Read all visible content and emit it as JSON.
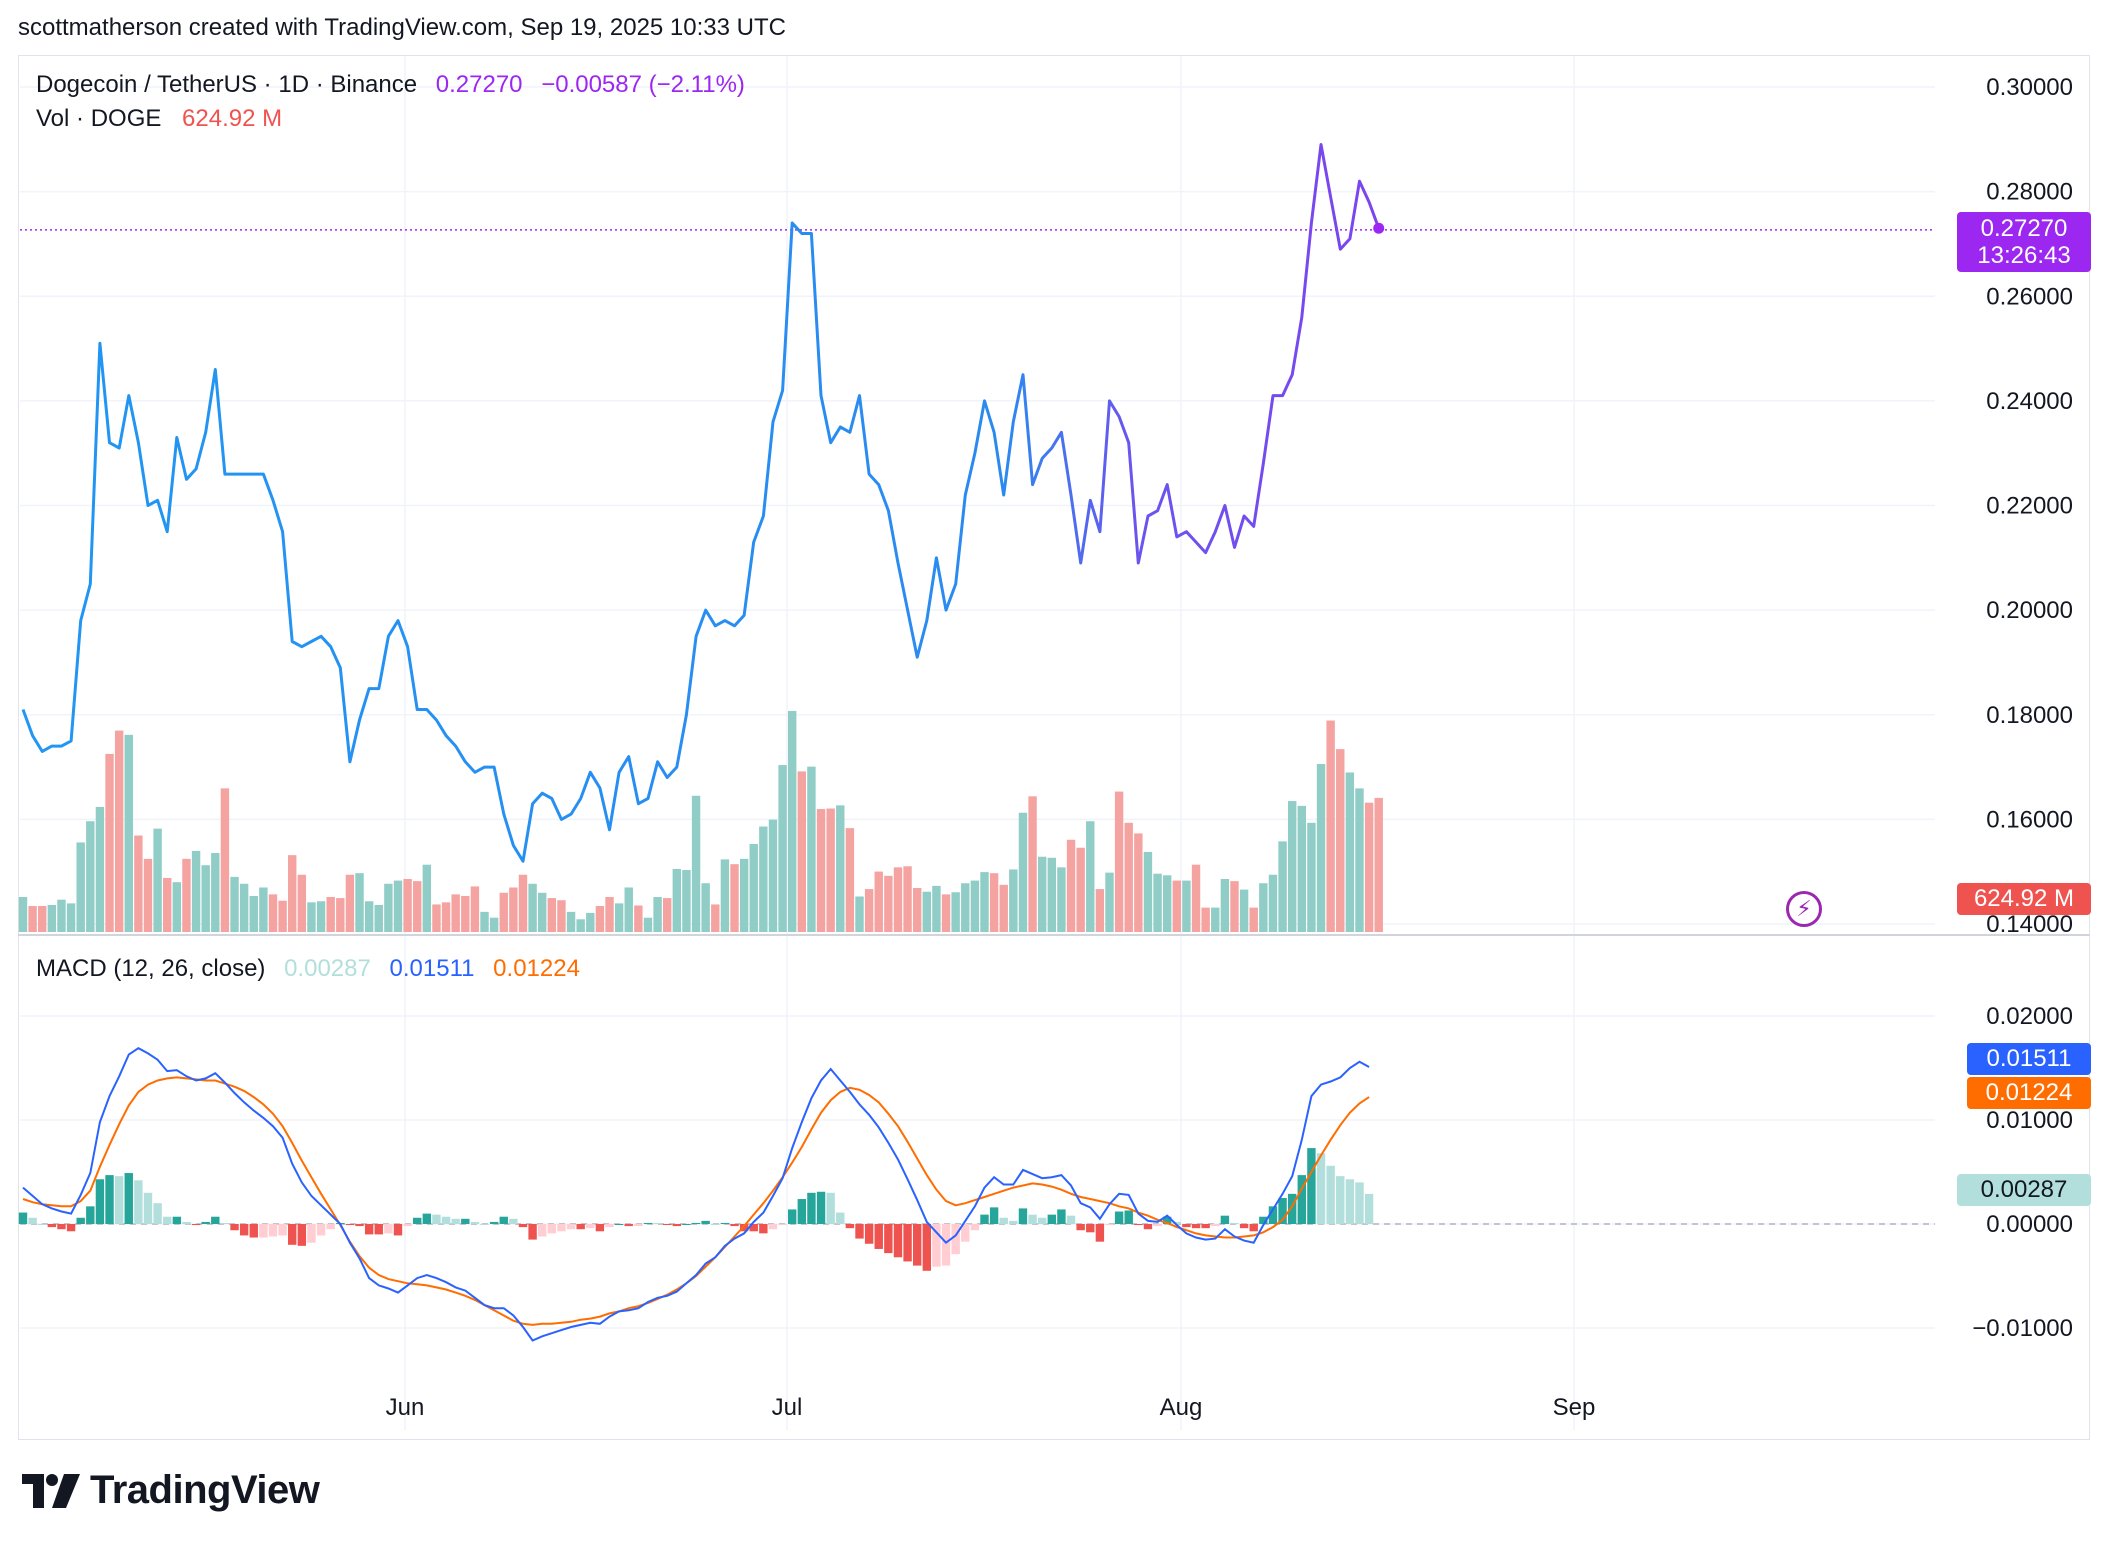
{
  "attribution": "scottmatherson created with TradingView.com, Sep 19, 2025 10:33 UTC",
  "legend": {
    "symbol": "Dogecoin / TetherUS · 1D · Binance",
    "price": "0.27270",
    "change": "−0.00587 (−2.11%)",
    "vol_label": "Vol · DOGE",
    "vol_value": "624.92 M",
    "macd_label": "MACD (12, 26, close)",
    "macd_hist": "0.00287",
    "macd_line": "0.01511",
    "macd_signal": "0.01224"
  },
  "tags": {
    "price": "0.27270",
    "countdown": "13:26:43",
    "volume": "624.92 M",
    "macd_line": "0.01511",
    "macd_signal": "0.01224",
    "macd_hist": "0.00287"
  },
  "colors": {
    "price_line_start": "#2196f3",
    "price_line_end": "#9c27f0",
    "price_tag": "#9c27f0",
    "up": "#26a69a",
    "down": "#ef5350",
    "vol_up": "#8fcdc6",
    "vol_down": "#f4a3a1",
    "macd_line": "#2962ff",
    "signal_line": "#ff6d00",
    "hist_light_up": "#b2dfdb",
    "hist_light_down": "#ffcdd2"
  },
  "logo_text": "TradingView",
  "chart_data": [
    {
      "type": "line",
      "title": "Dogecoin / TetherUS · 1D · Binance",
      "x_ticks": [
        "Jun",
        "Jul",
        "Aug",
        "Sep"
      ],
      "y_ticks": [
        "0.30000",
        "0.28000",
        "0.26000",
        "0.24000",
        "0.22000",
        "0.20000",
        "0.18000",
        "0.16000",
        "0.14000"
      ],
      "ylim": [
        0.14,
        0.3
      ],
      "last_price": 0.2727,
      "series": [
        {
          "name": "Dogecoin / TetherUS",
          "values": [
            0.181,
            0.176,
            0.173,
            0.174,
            0.174,
            0.175,
            0.198,
            0.205,
            0.251,
            0.232,
            0.231,
            0.241,
            0.232,
            0.22,
            0.221,
            0.215,
            0.233,
            0.225,
            0.227,
            0.234,
            0.246,
            0.226,
            0.226,
            0.226,
            0.226,
            0.226,
            0.221,
            0.215,
            0.194,
            0.193,
            0.194,
            0.195,
            0.193,
            0.189,
            0.171,
            0.179,
            0.185,
            0.185,
            0.195,
            0.198,
            0.193,
            0.181,
            0.181,
            0.179,
            0.176,
            0.174,
            0.171,
            0.169,
            0.17,
            0.17,
            0.161,
            0.155,
            0.152,
            0.163,
            0.165,
            0.164,
            0.16,
            0.161,
            0.164,
            0.169,
            0.166,
            0.158,
            0.169,
            0.172,
            0.163,
            0.164,
            0.171,
            0.168,
            0.17,
            0.18,
            0.195,
            0.2,
            0.197,
            0.198,
            0.197,
            0.199,
            0.213,
            0.218,
            0.236,
            0.242,
            0.274,
            0.272,
            0.272,
            0.241,
            0.232,
            0.235,
            0.234,
            0.241,
            0.226,
            0.224,
            0.219,
            0.209,
            0.2,
            0.191,
            0.198,
            0.21,
            0.2,
            0.205,
            0.222,
            0.23,
            0.24,
            0.234,
            0.222,
            0.236,
            0.245,
            0.224,
            0.229,
            0.231,
            0.234,
            0.222,
            0.209,
            0.221,
            0.215,
            0.24,
            0.237,
            0.232,
            0.209,
            0.218,
            0.219,
            0.224,
            0.214,
            0.215,
            0.213,
            0.211,
            0.215,
            0.22,
            0.212,
            0.218,
            0.216,
            0.228,
            0.241,
            0.241,
            0.245,
            0.256,
            0.274,
            0.289,
            0.279,
            0.269,
            0.271,
            0.282,
            0.278,
            0.273
          ]
        }
      ]
    },
    {
      "type": "bar",
      "title": "Vol · DOGE",
      "last_value": "624.92 M",
      "series": [
        {
          "name": "Vol · DOGE",
          "values": [
            0.66,
            0.49,
            0.49,
            0.51,
            0.61,
            0.54,
            1.69,
            2.09,
            2.36,
            3.36,
            3.8,
            3.72,
            1.82,
            1.38,
            1.95,
            1.02,
            0.94,
            1.38,
            1.53,
            1.26,
            1.49,
            2.71,
            1.04,
            0.91,
            0.68,
            0.84,
            0.71,
            0.59,
            1.45,
            1.08,
            0.56,
            0.58,
            0.66,
            0.64,
            1.08,
            1.11,
            0.58,
            0.51,
            0.91,
            0.97,
            1.0,
            0.96,
            1.27,
            0.52,
            0.56,
            0.71,
            0.68,
            0.86,
            0.38,
            0.27,
            0.74,
            0.84,
            1.08,
            0.91,
            0.74,
            0.64,
            0.6,
            0.38,
            0.24,
            0.36,
            0.49,
            0.66,
            0.54,
            0.84,
            0.5,
            0.27,
            0.66,
            0.64,
            1.19,
            1.17,
            2.57,
            0.92,
            0.52,
            1.37,
            1.28,
            1.38,
            1.66,
            1.99,
            2.12,
            3.15,
            4.17,
            3.03,
            3.12,
            2.32,
            2.33,
            2.39,
            1.96,
            0.67,
            0.81,
            1.14,
            1.06,
            1.22,
            1.24,
            0.83,
            0.76,
            0.87,
            0.71,
            0.75,
            0.92,
            0.97,
            1.13,
            1.11,
            0.89,
            1.18,
            2.25,
            2.56,
            1.42,
            1.4,
            1.22,
            1.74,
            1.59,
            2.09,
            0.81,
            1.12,
            2.65,
            2.06,
            1.86,
            1.51,
            1.1,
            1.07,
            0.97,
            0.97,
            1.27,
            0.46,
            0.46,
            1.0,
            0.96,
            0.8,
            0.46,
            0.92,
            1.08,
            1.71,
            2.47,
            2.38,
            2.06,
            3.17,
            3.99,
            3.45,
            3.01,
            2.71,
            2.44,
            2.53,
            2.05,
            1.77
          ]
        }
      ]
    },
    {
      "type": "line",
      "title": "MACD (12, 26, close)",
      "y_ticks": [
        "0.02000",
        "0.01000",
        "0.00000",
        "−0.01000"
      ],
      "ylim": [
        -0.015,
        0.025
      ],
      "series": [
        {
          "name": "MACD",
          "values": [
            0.0035,
            0.0027,
            0.0019,
            0.0015,
            0.0012,
            0.001,
            0.0028,
            0.0049,
            0.0098,
            0.0123,
            0.0142,
            0.0163,
            0.0169,
            0.0164,
            0.0158,
            0.0147,
            0.0148,
            0.0142,
            0.0138,
            0.014,
            0.0145,
            0.0136,
            0.0126,
            0.0117,
            0.0109,
            0.0102,
            0.0094,
            0.0083,
            0.0058,
            0.004,
            0.0027,
            0.0018,
            0.0009,
            0.0,
            -0.0018,
            -0.0033,
            -0.0052,
            -0.0059,
            -0.0062,
            -0.0066,
            -0.0059,
            -0.0052,
            -0.0049,
            -0.0052,
            -0.0056,
            -0.0061,
            -0.0064,
            -0.0071,
            -0.0078,
            -0.0081,
            -0.0081,
            -0.0088,
            -0.0099,
            -0.0112,
            -0.0108,
            -0.0105,
            -0.0102,
            -0.0099,
            -0.0097,
            -0.0095,
            -0.0096,
            -0.0089,
            -0.0084,
            -0.0083,
            -0.0081,
            -0.0075,
            -0.0071,
            -0.0069,
            -0.0065,
            -0.0057,
            -0.0049,
            -0.0038,
            -0.0032,
            -0.0021,
            -0.0014,
            -0.0009,
            0.0002,
            0.0011,
            0.0027,
            0.0044,
            0.0073,
            0.0098,
            0.0121,
            0.0138,
            0.0149,
            0.0138,
            0.0127,
            0.0115,
            0.0105,
            0.0093,
            0.0078,
            0.0062,
            0.0043,
            0.0023,
            0.0002,
            -0.0008,
            -0.0018,
            -0.0011,
            0.0003,
            0.0017,
            0.0035,
            0.0045,
            0.0038,
            0.0038,
            0.0052,
            0.0048,
            0.0044,
            0.0045,
            0.0047,
            0.0037,
            0.002,
            0.0016,
            0.0005,
            0.0019,
            0.0029,
            0.0028,
            0.001,
            0.0003,
            0.0002,
            0.0008,
            -0.0001,
            -0.0009,
            -0.0013,
            -0.0015,
            -0.0014,
            -0.0005,
            -0.0012,
            -0.0016,
            -0.0018,
            -0.0001,
            0.0014,
            0.0029,
            0.0046,
            0.0081,
            0.0123,
            0.0134,
            0.0137,
            0.0141,
            0.015,
            0.0156,
            0.0151
          ]
        },
        {
          "name": "Signal",
          "values": [
            0.0024,
            0.0021,
            0.0019,
            0.0018,
            0.0017,
            0.0017,
            0.0022,
            0.0032,
            0.0055,
            0.0076,
            0.0096,
            0.0114,
            0.0127,
            0.0134,
            0.0138,
            0.014,
            0.0141,
            0.014,
            0.0139,
            0.0138,
            0.0138,
            0.0135,
            0.0132,
            0.0128,
            0.0122,
            0.0115,
            0.0106,
            0.0094,
            0.0078,
            0.0061,
            0.0045,
            0.0029,
            0.0014,
            -0.0001,
            -0.0017,
            -0.0031,
            -0.0042,
            -0.0049,
            -0.0053,
            -0.0055,
            -0.0057,
            -0.0058,
            -0.0059,
            -0.0061,
            -0.0063,
            -0.0066,
            -0.0069,
            -0.0073,
            -0.0078,
            -0.0083,
            -0.0088,
            -0.0093,
            -0.0096,
            -0.0097,
            -0.0096,
            -0.0096,
            -0.0095,
            -0.0094,
            -0.0092,
            -0.0091,
            -0.0089,
            -0.0086,
            -0.0084,
            -0.0081,
            -0.0079,
            -0.0076,
            -0.0072,
            -0.0068,
            -0.0063,
            -0.0057,
            -0.005,
            -0.0041,
            -0.0032,
            -0.0022,
            -0.0012,
            -0.0002,
            0.0009,
            0.002,
            0.0032,
            0.0045,
            0.0059,
            0.0074,
            0.0091,
            0.0107,
            0.0119,
            0.0127,
            0.0131,
            0.0129,
            0.0124,
            0.0117,
            0.0106,
            0.0094,
            0.0079,
            0.0063,
            0.0047,
            0.0033,
            0.0022,
            0.0018,
            0.002,
            0.0023,
            0.0026,
            0.0029,
            0.0032,
            0.0035,
            0.0037,
            0.0039,
            0.0038,
            0.0036,
            0.0033,
            0.0029,
            0.0026,
            0.0024,
            0.0022,
            0.002,
            0.0017,
            0.0015,
            0.0011,
            0.0008,
            0.0004,
            0.0001,
            -0.0003,
            -0.0006,
            -0.0009,
            -0.0011,
            -0.0012,
            -0.0013,
            -0.0013,
            -0.0012,
            -0.0011,
            -0.0008,
            -0.0003,
            0.0004,
            0.0017,
            0.0034,
            0.005,
            0.0066,
            0.0081,
            0.0095,
            0.0107,
            0.0116,
            0.0122
          ]
        }
      ]
    }
  ]
}
